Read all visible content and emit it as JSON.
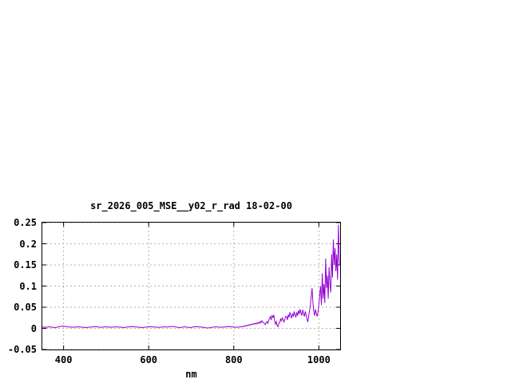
{
  "page": {
    "background": "#ffffff"
  },
  "chart_data": {
    "type": "line",
    "title": "sr_2026_005_MSE__y02_r_rad 18-02-00",
    "xlabel": "nm",
    "ylabel": "",
    "xlim": [
      350,
      1050
    ],
    "ylim": [
      -0.05,
      0.25
    ],
    "grid": true,
    "legend": "none",
    "line_color": "#9400d3",
    "grid_color": "#b0b0b0",
    "border_color": "#000000",
    "xticks": [
      {
        "v": 400,
        "label": "400"
      },
      {
        "v": 600,
        "label": "600"
      },
      {
        "v": 800,
        "label": "800"
      },
      {
        "v": 1000,
        "label": "1000"
      }
    ],
    "yticks": [
      {
        "v": -0.05,
        "label": "-0.05"
      },
      {
        "v": 0,
        "label": "0"
      },
      {
        "v": 0.05,
        "label": "0.05"
      },
      {
        "v": 0.1,
        "label": "0.1"
      },
      {
        "v": 0.15,
        "label": "0.15"
      },
      {
        "v": 0.2,
        "label": "0.2"
      },
      {
        "v": 0.25,
        "label": "0.25"
      }
    ],
    "series": [
      {
        "name": "sr_2026_005_MSE__y02_r_rad",
        "x": [
          350,
          356,
          362,
          368,
          374,
          380,
          386,
          392,
          398,
          404,
          410,
          416,
          422,
          428,
          434,
          440,
          446,
          452,
          458,
          464,
          470,
          476,
          482,
          488,
          494,
          500,
          506,
          512,
          518,
          524,
          530,
          536,
          542,
          548,
          554,
          560,
          566,
          572,
          578,
          584,
          590,
          596,
          602,
          608,
          614,
          620,
          626,
          632,
          638,
          644,
          650,
          656,
          662,
          668,
          674,
          680,
          686,
          692,
          698,
          704,
          710,
          716,
          722,
          728,
          734,
          740,
          746,
          752,
          758,
          764,
          770,
          776,
          782,
          788,
          794,
          800,
          806,
          812,
          818,
          820,
          822,
          824,
          826,
          828,
          830,
          832,
          834,
          836,
          838,
          840,
          842,
          844,
          846,
          848,
          850,
          852,
          854,
          856,
          858,
          860,
          862,
          864,
          866,
          868,
          870,
          872,
          874,
          876,
          878,
          880,
          882,
          884,
          886,
          888,
          890,
          892,
          894,
          896,
          898,
          900,
          902,
          904,
          906,
          908,
          910,
          912,
          914,
          916,
          918,
          920,
          922,
          924,
          926,
          928,
          930,
          932,
          934,
          936,
          938,
          940,
          942,
          944,
          946,
          948,
          950,
          952,
          954,
          956,
          958,
          960,
          962,
          964,
          966,
          968,
          970,
          972,
          974,
          976,
          978,
          980,
          982,
          984,
          986,
          988,
          990,
          992,
          994,
          996,
          998,
          1000,
          1002,
          1004,
          1006,
          1008,
          1010,
          1012,
          1014,
          1016,
          1018,
          1020,
          1022,
          1024,
          1026,
          1028,
          1030,
          1032,
          1034,
          1036,
          1038,
          1040,
          1042,
          1044,
          1046,
          1048,
          1050
        ],
        "y": [
          0.003,
          0.0025,
          0.003,
          0.0035,
          0.0025,
          0.002,
          0.003,
          0.0045,
          0.0055,
          0.0045,
          0.0035,
          0.003,
          0.0025,
          0.003,
          0.0035,
          0.003,
          0.0025,
          0.002,
          0.0025,
          0.003,
          0.0035,
          0.004,
          0.003,
          0.0025,
          0.003,
          0.0035,
          0.003,
          0.0025,
          0.003,
          0.0035,
          0.003,
          0.0025,
          0.002,
          0.003,
          0.0035,
          0.004,
          0.0035,
          0.003,
          0.0025,
          0.002,
          0.0025,
          0.003,
          0.004,
          0.0035,
          0.003,
          0.0025,
          0.0025,
          0.003,
          0.0035,
          0.003,
          0.004,
          0.0045,
          0.0035,
          0.0025,
          0.002,
          0.003,
          0.0035,
          0.0025,
          0.002,
          0.003,
          0.004,
          0.0035,
          0.003,
          0.0025,
          0.0015,
          0.001,
          0.002,
          0.003,
          0.0035,
          0.003,
          0.0025,
          0.003,
          0.0035,
          0.004,
          0.0035,
          0.003,
          0.0025,
          0.003,
          0.0035,
          0.004,
          0.005,
          0.004,
          0.006,
          0.005,
          0.007,
          0.006,
          0.008,
          0.007,
          0.009,
          0.008,
          0.01,
          0.009,
          0.011,
          0.01,
          0.012,
          0.01,
          0.013,
          0.011,
          0.014,
          0.012,
          0.016,
          0.013,
          0.018,
          0.015,
          0.014,
          0.011,
          0.009,
          0.013,
          0.016,
          0.012,
          0.018,
          0.024,
          0.028,
          0.02,
          0.03,
          0.026,
          0.032,
          0.018,
          0.01,
          0.016,
          0.006,
          0.004,
          0.012,
          0.014,
          0.022,
          0.018,
          0.025,
          0.02,
          0.015,
          0.022,
          0.028,
          0.028,
          0.02,
          0.032,
          0.026,
          0.038,
          0.03,
          0.024,
          0.035,
          0.028,
          0.04,
          0.032,
          0.026,
          0.038,
          0.03,
          0.042,
          0.034,
          0.045,
          0.036,
          0.03,
          0.044,
          0.035,
          0.028,
          0.04,
          0.032,
          0.022,
          0.015,
          0.028,
          0.042,
          0.055,
          0.075,
          0.095,
          0.06,
          0.04,
          0.03,
          0.045,
          0.035,
          0.028,
          0.038,
          0.055,
          0.08,
          0.1,
          0.055,
          0.13,
          0.07,
          0.105,
          0.06,
          0.165,
          0.095,
          0.125,
          0.07,
          0.145,
          0.105,
          0.085,
          0.175,
          0.12,
          0.21,
          0.15,
          0.19,
          0.135,
          0.175,
          0.115,
          0.245,
          0.16,
          0.15
        ]
      }
    ]
  }
}
